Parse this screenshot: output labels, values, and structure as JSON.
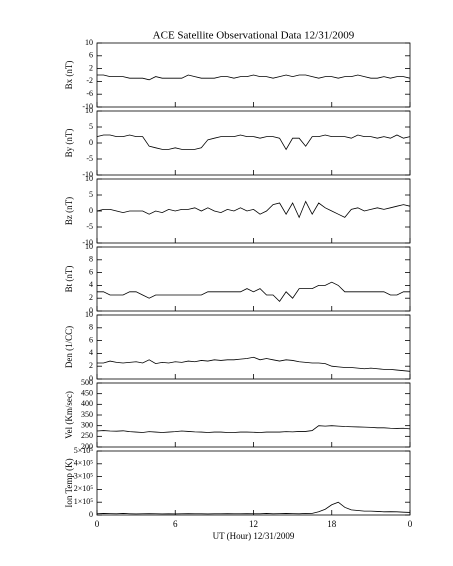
{
  "chart_data": [
    {
      "type": "line",
      "title": "ACE Satellite Observational Data   12/31/2009",
      "y_label": "Bx (nT)",
      "color": "#000000",
      "ylim": [
        -10,
        10
      ],
      "yticks": [
        -10,
        -6,
        -2,
        2,
        6,
        10
      ],
      "values": [
        0,
        0,
        -0.5,
        -0.5,
        -0.5,
        -1,
        -1,
        -1,
        -1.5,
        -0.5,
        -1,
        -1,
        -1,
        -1,
        0,
        -0.5,
        -1,
        -1,
        -1,
        -0.5,
        -0.5,
        -1,
        -0.5,
        -0.5,
        0,
        -0.5,
        -0.5,
        -1,
        -0.5,
        0,
        -0.5,
        0,
        0,
        -0.5,
        -1,
        -0.5,
        -0.5,
        -1,
        -0.5,
        -0.5,
        0,
        -0.5,
        -1,
        -1,
        -0.5,
        -1,
        -0.5,
        -0.5,
        -1
      ]
    },
    {
      "type": "line",
      "y_label": "By (nT)",
      "color": "#000000",
      "ylim": [
        -10,
        10
      ],
      "yticks": [
        -10,
        -5,
        0,
        5,
        10
      ],
      "values": [
        2,
        2.5,
        2.5,
        2,
        2,
        2.5,
        2,
        2,
        -1,
        -1.5,
        -2,
        -2,
        -1.5,
        -2,
        -2,
        -2,
        -1.5,
        1,
        1.5,
        2,
        2,
        2,
        2.5,
        2,
        2,
        1.5,
        2,
        2,
        1.5,
        -2,
        1.5,
        1.5,
        -1,
        2,
        2,
        2.5,
        2,
        2,
        2,
        1.5,
        2.5,
        2,
        2,
        1.5,
        2,
        1.5,
        2.5,
        1.5,
        2
      ]
    },
    {
      "type": "line",
      "y_label": "Bz (nT)",
      "color": "#000000",
      "ylim": [
        -10,
        10
      ],
      "yticks": [
        -10,
        -5,
        0,
        5,
        10
      ],
      "values": [
        0,
        0.5,
        0.5,
        0,
        -0.5,
        0,
        0,
        0,
        -1,
        0,
        -0.5,
        0.5,
        0,
        0.5,
        0.5,
        1,
        0,
        1,
        0,
        -0.5,
        0.5,
        0,
        1,
        0,
        0.5,
        -1,
        0,
        2,
        2.5,
        -1,
        2.5,
        -2,
        3,
        -1,
        2.5,
        1,
        0,
        -1,
        -2,
        0.5,
        1,
        0,
        0.5,
        1,
        0.5,
        1,
        1.5,
        2,
        1.5
      ]
    },
    {
      "type": "line",
      "y_label": "Bt (nT)",
      "color": "#000000",
      "ylim": [
        0,
        10
      ],
      "yticks": [
        0,
        2,
        4,
        6,
        8,
        10
      ],
      "values": [
        3,
        3,
        2.5,
        2.5,
        2.5,
        3,
        3,
        2.5,
        2,
        2.5,
        2.5,
        2.5,
        2.5,
        2.5,
        2.5,
        2.5,
        2.5,
        3,
        3,
        3,
        3,
        3,
        3,
        3.5,
        3,
        3.5,
        2.5,
        2.5,
        1.5,
        3,
        2,
        3.5,
        3.5,
        3.5,
        4,
        4,
        4.5,
        4,
        3,
        3,
        3,
        3,
        3,
        3,
        3,
        2.5,
        2.5,
        3,
        3
      ]
    },
    {
      "type": "line",
      "y_label": "Den (1/CC)",
      "color": "#000000",
      "ylim": [
        0,
        10
      ],
      "yticks": [
        0,
        2,
        4,
        6,
        8,
        10
      ],
      "values": [
        2.5,
        2.5,
        2.8,
        2.6,
        2.5,
        2.6,
        2.7,
        2.5,
        3,
        2.4,
        2.6,
        2.5,
        2.7,
        2.6,
        2.8,
        2.7,
        2.9,
        2.8,
        3,
        2.9,
        3,
        3,
        3.1,
        3.2,
        3.4,
        3,
        3.2,
        3,
        2.8,
        3,
        2.9,
        2.7,
        2.6,
        2.5,
        2.5,
        2.4,
        2,
        1.9,
        1.8,
        1.8,
        1.7,
        1.6,
        1.7,
        1.6,
        1.5,
        1.5,
        1.4,
        1.3,
        1.2
      ]
    },
    {
      "type": "line",
      "y_label": "Vel (Km/sec)",
      "color": "#000000",
      "ylim": [
        200,
        500
      ],
      "yticks": [
        200,
        250,
        300,
        350,
        400,
        450,
        500
      ],
      "values": [
        275,
        277,
        275,
        274,
        276,
        272,
        270,
        268,
        272,
        270,
        268,
        270,
        272,
        275,
        273,
        271,
        270,
        268,
        270,
        270,
        268,
        268,
        270,
        270,
        269,
        268,
        270,
        270,
        270,
        272,
        271,
        273,
        273,
        277,
        300,
        298,
        300,
        298,
        296,
        295,
        294,
        293,
        292,
        290,
        290,
        288,
        287,
        288,
        285
      ]
    },
    {
      "type": "line",
      "y_label": "Ion Temp (K)",
      "x_label": "UT (Hour)   12/31/2009",
      "color": "#000000",
      "ylim": [
        0,
        500000
      ],
      "yticks": [
        0,
        {
          "value": 100000,
          "label": "1×10⁵"
        },
        {
          "value": 200000,
          "label": "2×10⁵"
        },
        {
          "value": 300000,
          "label": "3×10⁵"
        },
        {
          "value": 400000,
          "label": "4×10⁵"
        },
        {
          "value": 500000,
          "label": "5×10⁵"
        }
      ],
      "xlim": [
        0,
        24
      ],
      "xticks": [
        0,
        6,
        12,
        18,
        {
          "value": 24,
          "label": "0"
        }
      ],
      "x": [
        0,
        0.5,
        1,
        1.5,
        2,
        2.5,
        3,
        3.5,
        4,
        4.5,
        5,
        5.5,
        6,
        6.5,
        7,
        7.5,
        8,
        8.5,
        9,
        9.5,
        10,
        10.5,
        11,
        11.5,
        12,
        12.5,
        13,
        13.5,
        14,
        14.5,
        15,
        15.5,
        16,
        16.5,
        17,
        17.5,
        18,
        18.5,
        19,
        19.5,
        20,
        20.5,
        21,
        21.5,
        22,
        22.5,
        23,
        23.5,
        24
      ],
      "values": [
        10000,
        12000,
        11000,
        10000,
        12000,
        10000,
        9000,
        10000,
        11000,
        10000,
        9000,
        10000,
        9000,
        10000,
        11000,
        10000,
        10000,
        9000,
        10000,
        10000,
        11000,
        10000,
        10000,
        11000,
        10000,
        10000,
        12000,
        10000,
        11000,
        12000,
        11000,
        10000,
        12000,
        13000,
        25000,
        45000,
        80000,
        100000,
        60000,
        40000,
        35000,
        30000,
        30000,
        28000,
        25000,
        26000,
        25000,
        22000,
        20000
      ]
    }
  ]
}
